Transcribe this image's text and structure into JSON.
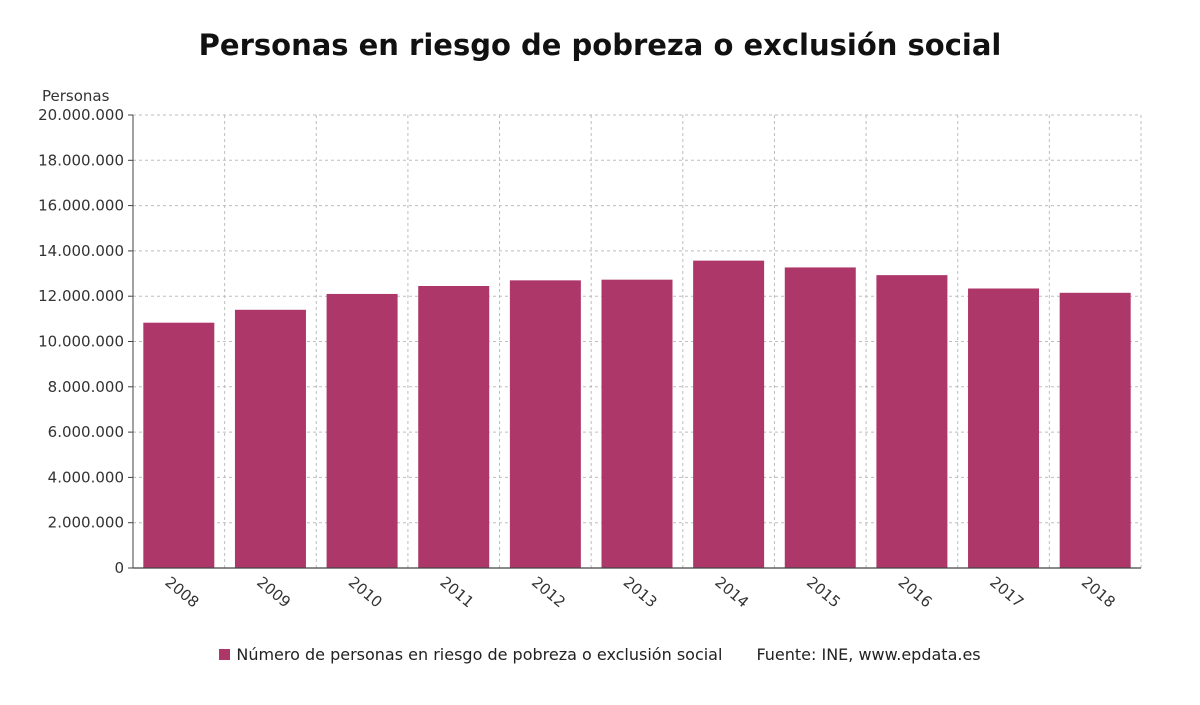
{
  "title": "Personas en riesgo de pobreza o exclusión social",
  "legend": {
    "series_label": "Número de personas en riesgo de pobreza o exclusión social",
    "source": "Fuente: INE, www.epdata.es"
  },
  "chart_data": {
    "type": "bar",
    "title": "Personas en riesgo de pobreza o exclusión social",
    "ylabel": "Personas",
    "xlabel": "",
    "categories": [
      "2008",
      "2009",
      "2010",
      "2011",
      "2012",
      "2013",
      "2014",
      "2015",
      "2016",
      "2017",
      "2018"
    ],
    "series": [
      {
        "name": "Número de personas en riesgo de pobreza o exclusión social",
        "values": [
          10830000,
          11400000,
          12100000,
          12450000,
          12700000,
          12730000,
          13570000,
          13270000,
          12930000,
          12340000,
          12150000
        ],
        "color": "#ad3768"
      }
    ],
    "ylim": [
      0,
      20000000
    ],
    "yticks": [
      0,
      2000000,
      4000000,
      6000000,
      8000000,
      10000000,
      12000000,
      14000000,
      16000000,
      18000000,
      20000000
    ],
    "ytick_labels": [
      "0",
      "2.000.000",
      "4.000.000",
      "6.000.000",
      "8.000.000",
      "10.000.000",
      "12.000.000",
      "14.000.000",
      "16.000.000",
      "18.000.000",
      "20.000.000"
    ],
    "grid": true,
    "legend_position": "bottom"
  }
}
